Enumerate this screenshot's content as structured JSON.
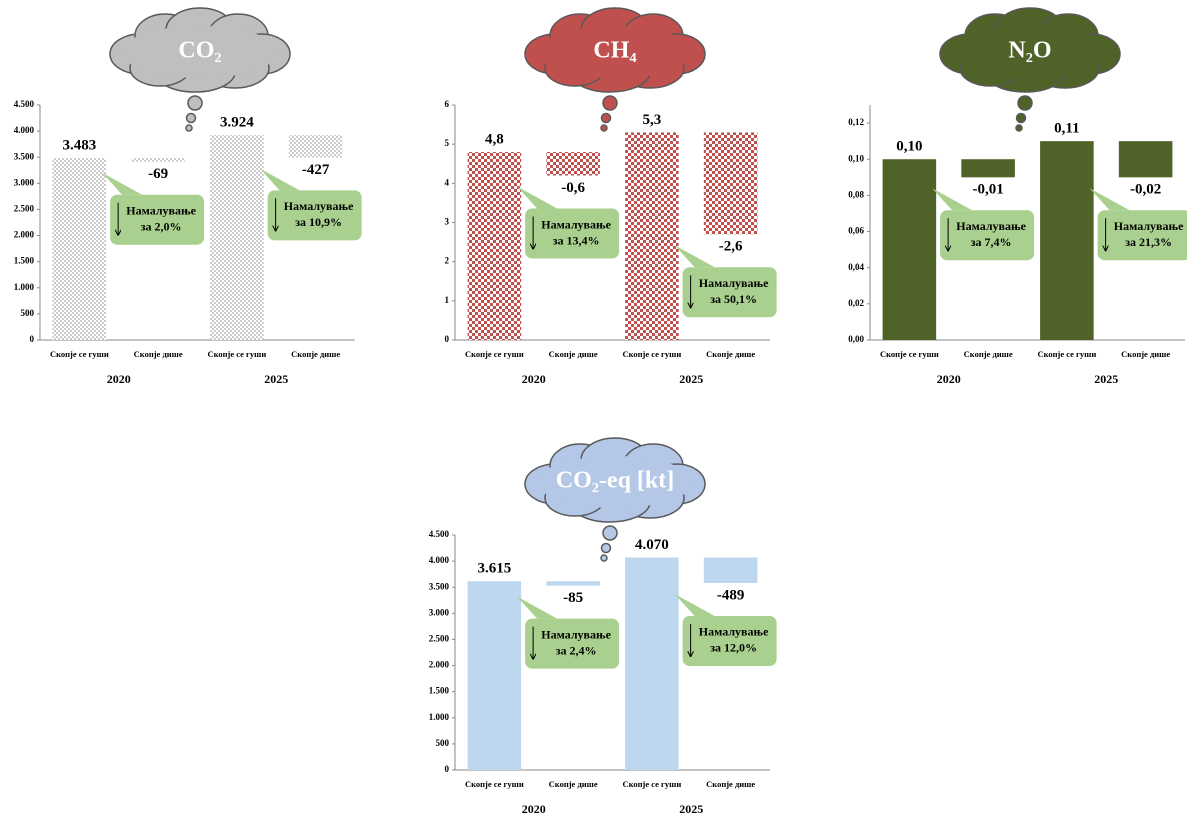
{
  "chart_data": [
    {
      "type": "waterfall",
      "title": "CO₂",
      "cloud_color": "#bfbfbf",
      "color": "#a6a6a6",
      "pattern": "dots",
      "categories": [
        "Скопје се гуши",
        "Скопје дише",
        "Скопје се гуши",
        "Скопје дише"
      ],
      "groups": [
        "2020",
        "2025"
      ],
      "values": [
        3483,
        -69,
        3924,
        -427
      ],
      "value_labels": [
        "3.483",
        "-69",
        "3.924",
        "-427"
      ],
      "annotations": [
        [
          "Намалување",
          "за 2,0%"
        ],
        [
          "Намалување",
          "за 10,9%"
        ]
      ],
      "ylim": [
        0,
        4500
      ],
      "yticks": [
        0,
        500,
        {
          "value": 1000,
          "label": "1.000"
        },
        {
          "value": 1500,
          "label": "1.500"
        },
        {
          "value": 2000,
          "label": "2.000"
        },
        {
          "value": 2500,
          "label": "2.500"
        },
        {
          "value": 3000,
          "label": "3.000"
        },
        {
          "value": 3500,
          "label": "3.500"
        },
        {
          "value": 4000,
          "label": "4.000"
        },
        {
          "value": 4500,
          "label": "4.500"
        }
      ]
    },
    {
      "type": "waterfall",
      "title": "CH₄",
      "cloud_color": "#c0504d",
      "color": "#c0504d",
      "pattern": "checker",
      "categories": [
        "Скопје се гуши",
        "Скопје дише",
        "Скопје се гуши",
        "Скопје дише"
      ],
      "groups": [
        "2020",
        "2025"
      ],
      "values": [
        4.8,
        -0.6,
        5.3,
        -2.6
      ],
      "value_labels": [
        "4,8",
        "-0,6",
        "5,3",
        "-2,6"
      ],
      "annotations": [
        [
          "Намалување",
          "за 13,4%"
        ],
        [
          "Намалување",
          "за 50,1%"
        ]
      ],
      "ylim": [
        0,
        6
      ],
      "yticks": [
        0,
        1,
        2,
        3,
        4,
        5,
        6
      ]
    },
    {
      "type": "waterfall",
      "title": "N₂O",
      "cloud_color": "#4f6228",
      "color": "#4f6228",
      "pattern": "solid",
      "categories": [
        "Скопје се гуши",
        "Скопје дише",
        "Скопје се гуши",
        "Скопје дише"
      ],
      "groups": [
        "2020",
        "2025"
      ],
      "values": [
        0.1,
        -0.01,
        0.11,
        -0.02
      ],
      "value_labels": [
        "0,10",
        "-0,01",
        "0,11",
        "-0,02"
      ],
      "annotations": [
        [
          "Намалување",
          "за 7,4%"
        ],
        [
          "Намалување",
          "за 21,3%"
        ]
      ],
      "ylim": [
        0,
        0.13
      ],
      "yticks": [
        {
          "value": 0,
          "label": "0,00"
        },
        {
          "value": 0.02,
          "label": "0,02"
        },
        {
          "value": 0.04,
          "label": "0,04"
        },
        {
          "value": 0.06,
          "label": "0,06"
        },
        {
          "value": 0.08,
          "label": "0,08"
        },
        {
          "value": 0.1,
          "label": "0,10"
        },
        {
          "value": 0.12,
          "label": "0,12"
        }
      ]
    },
    {
      "type": "waterfall",
      "title": "CO₂-eq [kt]",
      "cloud_color": "#b4c7e7",
      "color": "#bdd7ee",
      "pattern": "solid",
      "categories": [
        "Скопје се гуши",
        "Скопје дише",
        "Скопје се гуши",
        "Скопје дише"
      ],
      "groups": [
        "2020",
        "2025"
      ],
      "values": [
        3615,
        -85,
        4070,
        -489
      ],
      "value_labels": [
        "3.615",
        "-85",
        "4.070",
        "-489"
      ],
      "annotations": [
        [
          "Намалување",
          "за 2,4%"
        ],
        [
          "Намалување",
          "за 12,0%"
        ]
      ],
      "ylim": [
        0,
        4500
      ],
      "yticks": [
        0,
        500,
        {
          "value": 1000,
          "label": "1.000"
        },
        {
          "value": 1500,
          "label": "1.500"
        },
        {
          "value": 2000,
          "label": "2.000"
        },
        {
          "value": 2500,
          "label": "2.500"
        },
        {
          "value": 3000,
          "label": "3.000"
        },
        {
          "value": 3500,
          "label": "3.500"
        },
        {
          "value": 4000,
          "label": "4.000"
        },
        {
          "value": 4500,
          "label": "4.500"
        }
      ]
    }
  ]
}
